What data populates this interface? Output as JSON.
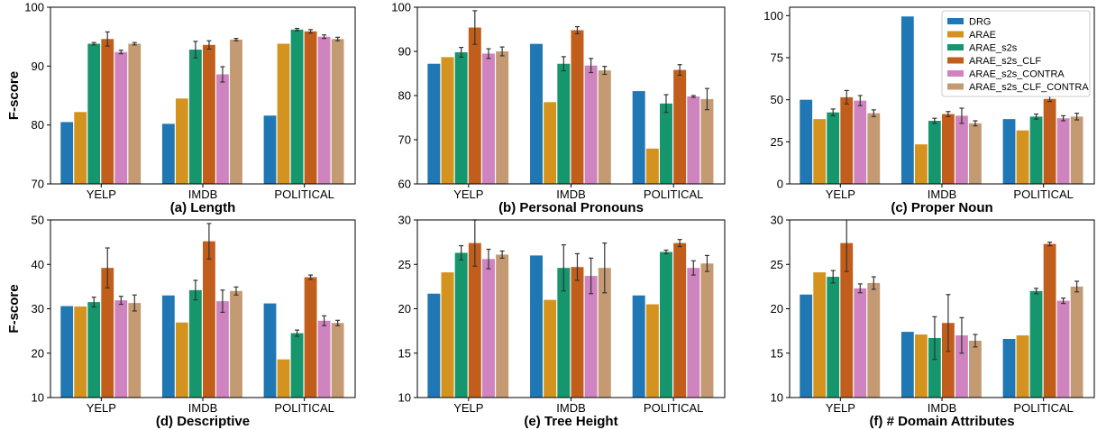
{
  "colors": [
    "#1f77b4",
    "#d4921e",
    "#16966d",
    "#c25e1c",
    "#cf83bf",
    "#c49a73"
  ],
  "chart_data": [
    {
      "type": "bar",
      "title": "(a) Length",
      "ylabel": "F-score",
      "categories": [
        "YELP",
        "IMDB",
        "POLITICAL"
      ],
      "ylim": [
        70,
        100
      ],
      "yticks": [
        70,
        80,
        90,
        100
      ],
      "series": [
        {
          "name": "DRG",
          "values": [
            80.5,
            80.2,
            81.6
          ],
          "errors": [
            0,
            0,
            0
          ]
        },
        {
          "name": "ARAE",
          "values": [
            82.2,
            84.5,
            93.8
          ],
          "errors": [
            0,
            0,
            0
          ]
        },
        {
          "name": "ARAE_s2s",
          "values": [
            93.8,
            92.8,
            96.2
          ],
          "errors": [
            0.2,
            1.4,
            0.2
          ]
        },
        {
          "name": "ARAE_s2s_CLF",
          "values": [
            94.6,
            93.6,
            95.9
          ],
          "errors": [
            1.2,
            0.7,
            0.3
          ]
        },
        {
          "name": "ARAE_s2s_CONTRA",
          "values": [
            92.4,
            88.6,
            95.0
          ],
          "errors": [
            0.3,
            1.3,
            0.3
          ]
        },
        {
          "name": "ARAE_s2s_CLF_CONTRA",
          "values": [
            93.8,
            94.5,
            94.6
          ],
          "errors": [
            0.2,
            0.2,
            0.3
          ]
        }
      ]
    },
    {
      "type": "bar",
      "title": "(b) Personal Pronouns",
      "categories": [
        "YELP",
        "IMDB",
        "POLITICAL"
      ],
      "ylim": [
        60,
        100
      ],
      "yticks": [
        60,
        70,
        80,
        90,
        100
      ],
      "series": [
        {
          "name": "DRG",
          "values": [
            87.2,
            91.7,
            81.0
          ],
          "errors": [
            0,
            0,
            0
          ]
        },
        {
          "name": "ARAE",
          "values": [
            88.7,
            78.5,
            68.0
          ],
          "errors": [
            0,
            0,
            0
          ]
        },
        {
          "name": "ARAE_s2s",
          "values": [
            89.8,
            87.2,
            78.2
          ],
          "errors": [
            1.1,
            1.6,
            2.0
          ]
        },
        {
          "name": "ARAE_s2s_CLF",
          "values": [
            95.4,
            94.8,
            85.8
          ],
          "errors": [
            3.8,
            0.8,
            1.2
          ]
        },
        {
          "name": "ARAE_s2s_CONTRA",
          "values": [
            89.5,
            86.8,
            79.8
          ],
          "errors": [
            1.1,
            1.6,
            0.2
          ]
        },
        {
          "name": "ARAE_s2s_CLF_CONTRA",
          "values": [
            90.0,
            85.7,
            79.2
          ],
          "errors": [
            1.0,
            0.9,
            2.4
          ]
        }
      ]
    },
    {
      "type": "bar",
      "title": "(c) Proper Noun",
      "categories": [
        "YELP",
        "IMDB",
        "POLITICAL"
      ],
      "ylim": [
        0,
        105
      ],
      "yticks": [
        0,
        25,
        50,
        75,
        100
      ],
      "legend": "top-right",
      "series": [
        {
          "name": "DRG",
          "values": [
            50.0,
            99.5,
            38.5
          ],
          "errors": [
            0,
            0,
            0
          ]
        },
        {
          "name": "ARAE",
          "values": [
            38.5,
            23.5,
            31.8
          ],
          "errors": [
            0,
            0,
            0
          ]
        },
        {
          "name": "ARAE_s2s",
          "values": [
            42.5,
            37.5,
            40.0
          ],
          "errors": [
            2.0,
            1.5,
            1.5
          ]
        },
        {
          "name": "ARAE_s2s_CLF",
          "values": [
            51.5,
            41.5,
            50.5
          ],
          "errors": [
            4.0,
            1.5,
            1.5
          ]
        },
        {
          "name": "ARAE_s2s_CONTRA",
          "values": [
            49.5,
            40.5,
            39.0
          ],
          "errors": [
            3.0,
            4.5,
            1.5
          ]
        },
        {
          "name": "ARAE_s2s_CLF_CONTRA",
          "values": [
            42.0,
            36.0,
            40.0
          ],
          "errors": [
            2.0,
            1.5,
            2.0
          ]
        }
      ]
    },
    {
      "type": "bar",
      "title": "(d) Descriptive",
      "ylabel": "F-score",
      "categories": [
        "YELP",
        "IMDB",
        "POLITICAL"
      ],
      "ylim": [
        10,
        50
      ],
      "yticks": [
        10,
        20,
        30,
        40,
        50
      ],
      "series": [
        {
          "name": "DRG",
          "values": [
            30.6,
            33.0,
            31.2
          ],
          "errors": [
            0,
            0,
            0
          ]
        },
        {
          "name": "ARAE",
          "values": [
            30.5,
            26.9,
            18.6
          ],
          "errors": [
            0,
            0,
            0
          ]
        },
        {
          "name": "ARAE_s2s",
          "values": [
            31.5,
            34.2,
            24.5
          ],
          "errors": [
            1.1,
            2.2,
            0.7
          ]
        },
        {
          "name": "ARAE_s2s_CLF",
          "values": [
            39.2,
            45.2,
            37.1
          ],
          "errors": [
            4.5,
            4.0,
            0.5
          ]
        },
        {
          "name": "ARAE_s2s_CONTRA",
          "values": [
            31.9,
            31.7,
            27.3
          ],
          "errors": [
            0.9,
            2.5,
            1.1
          ]
        },
        {
          "name": "ARAE_s2s_CLF_CONTRA",
          "values": [
            31.3,
            34.0,
            26.8
          ],
          "errors": [
            1.8,
            0.9,
            0.6
          ]
        }
      ]
    },
    {
      "type": "bar",
      "title": "(e) Tree Height",
      "categories": [
        "YELP",
        "IMDB",
        "POLITICAL"
      ],
      "ylim": [
        10,
        30
      ],
      "yticks": [
        10,
        15,
        20,
        25,
        30
      ],
      "series": [
        {
          "name": "DRG",
          "values": [
            21.7,
            26.0,
            21.5
          ],
          "errors": [
            0,
            0,
            0
          ]
        },
        {
          "name": "ARAE",
          "values": [
            24.1,
            21.0,
            20.5
          ],
          "errors": [
            0,
            0,
            0
          ]
        },
        {
          "name": "ARAE_s2s",
          "values": [
            26.3,
            24.6,
            26.4
          ],
          "errors": [
            0.8,
            2.6,
            0.2
          ]
        },
        {
          "name": "ARAE_s2s_CLF",
          "values": [
            27.4,
            24.7,
            27.4
          ],
          "errors": [
            2.6,
            1.5,
            0.4
          ]
        },
        {
          "name": "ARAE_s2s_CONTRA",
          "values": [
            25.6,
            23.7,
            24.6
          ],
          "errors": [
            1.1,
            2.0,
            0.8
          ]
        },
        {
          "name": "ARAE_s2s_CLF_CONTRA",
          "values": [
            26.1,
            24.6,
            25.1
          ],
          "errors": [
            0.4,
            2.8,
            0.9
          ]
        }
      ]
    },
    {
      "type": "bar",
      "title": "(f) # Domain Attributes",
      "categories": [
        "YELP",
        "IMDB",
        "POLITICAL"
      ],
      "ylim": [
        10,
        30
      ],
      "yticks": [
        10,
        15,
        20,
        25,
        30
      ],
      "series": [
        {
          "name": "DRG",
          "values": [
            21.6,
            17.4,
            16.6
          ],
          "errors": [
            0,
            0,
            0
          ]
        },
        {
          "name": "ARAE",
          "values": [
            24.1,
            17.1,
            17.0
          ],
          "errors": [
            0,
            0,
            0
          ]
        },
        {
          "name": "ARAE_s2s",
          "values": [
            23.6,
            16.7,
            22.0
          ],
          "errors": [
            0.7,
            2.4,
            0.3
          ]
        },
        {
          "name": "ARAE_s2s_CLF",
          "values": [
            27.4,
            18.4,
            27.3
          ],
          "errors": [
            3.2,
            3.2,
            0.2
          ]
        },
        {
          "name": "ARAE_s2s_CONTRA",
          "values": [
            22.3,
            17.0,
            20.9
          ],
          "errors": [
            0.5,
            2.0,
            0.3
          ]
        },
        {
          "name": "ARAE_s2s_CLF_CONTRA",
          "values": [
            22.9,
            16.4,
            22.5
          ],
          "errors": [
            0.7,
            0.7,
            0.6
          ]
        }
      ]
    }
  ]
}
